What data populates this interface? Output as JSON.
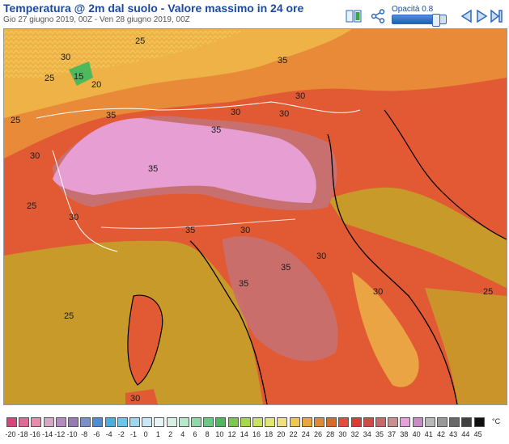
{
  "header": {
    "title": "Temperatura @ 2m dal suolo - Valore massimo in 24 ore",
    "subtitle": "Gio 27 giugno 2019, 00Z - Ven 28 giugno 2019, 00Z",
    "opacity_label": "Opacità 0.8",
    "opacity_value": 0.8
  },
  "toolbar": {
    "icons": [
      "book-icon",
      "share-icon",
      "play-back-icon",
      "play-forward-icon",
      "last-frame-icon"
    ]
  },
  "map": {
    "isotherm_labels": [
      "25",
      "30",
      "35",
      "15",
      "20",
      "25",
      "30",
      "35",
      "30",
      "25",
      "30",
      "35",
      "30",
      "35",
      "30",
      "25",
      "30",
      "35",
      "30",
      "25",
      "35",
      "30",
      "35",
      "30",
      "25"
    ]
  },
  "legend": {
    "unit": "°C",
    "values": [
      "-20",
      "-18",
      "-16",
      "-14",
      "-12",
      "-10",
      "-8",
      "-6",
      "-4",
      "-2",
      "-1",
      "0",
      "1",
      "2",
      "4",
      "6",
      "8",
      "10",
      "12",
      "14",
      "16",
      "18",
      "20",
      "22",
      "24",
      "26",
      "28",
      "30",
      "32",
      "34",
      "35",
      "37",
      "38",
      "40",
      "41",
      "42",
      "43",
      "44",
      "45"
    ],
    "colors": [
      "#d9447e",
      "#e06a95",
      "#e88aab",
      "#d9a6c6",
      "#b48ac0",
      "#9a79b8",
      "#7e8fc8",
      "#4a8fd6",
      "#4aaee0",
      "#6cc6ea",
      "#9dd8f0",
      "#c8e8f5",
      "#e8f5f8",
      "#d8f0e4",
      "#b8e8cc",
      "#8fd8a8",
      "#6ac884",
      "#4db85c",
      "#7cc84a",
      "#a6d84a",
      "#c8e45a",
      "#e0e870",
      "#f0e080",
      "#f0c850",
      "#e8a838",
      "#e08a30",
      "#d86a2c",
      "#e84a3a",
      "#e03a30",
      "#d04a48",
      "#c86868",
      "#c89090",
      "#e8a0d8",
      "#c88ac8",
      "#b8b8b8",
      "#989898",
      "#686868",
      "#404040",
      "#101010"
    ]
  }
}
